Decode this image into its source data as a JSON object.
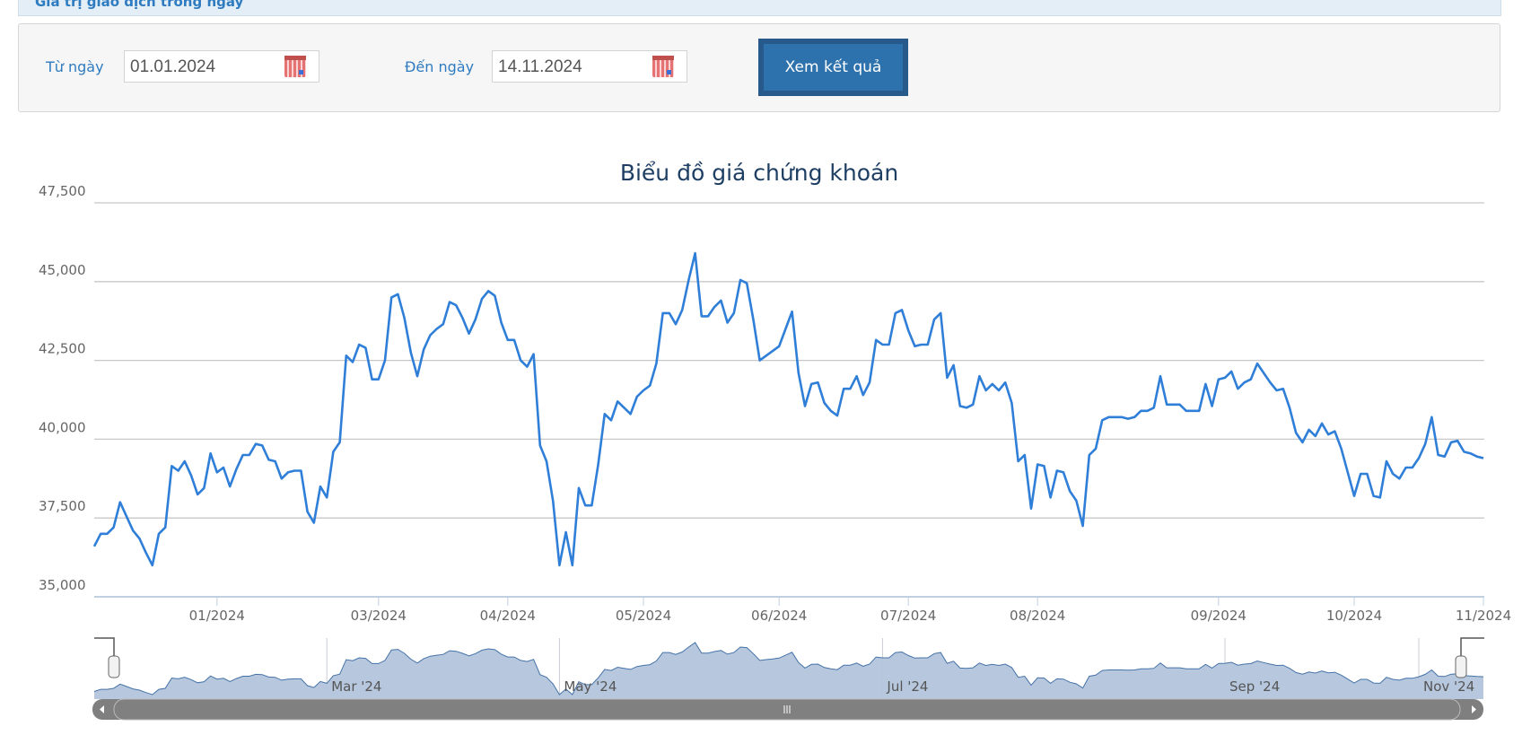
{
  "header": {
    "section_title": "Giá trị giao dịch trong ngày"
  },
  "filter": {
    "from_label": "Từ ngày",
    "from_value": "01.01.2024",
    "to_label": "Đến ngày",
    "to_value": "14.11.2024",
    "submit_label": "Xem kết quả",
    "calendar_icon": "calendar-icon"
  },
  "colors": {
    "line": "#2f7ed8",
    "navigator_fill": "#b3c5dc",
    "navigator_line": "#4572a7",
    "accent": "#2f7bc0"
  },
  "chart_data": {
    "type": "line",
    "title": "Biểu đồ giá chứng khoán",
    "xlabel": "",
    "ylabel": "",
    "ylim": [
      35000,
      47500
    ],
    "y_ticks": [
      "35,000",
      "37,500",
      "40,000",
      "42,500",
      "45,000",
      "47,500"
    ],
    "y_tick_values": [
      35000,
      37500,
      40000,
      42500,
      45000,
      47500
    ],
    "grid": true,
    "x_axis": "ordinal trading days",
    "x_ticks": [
      {
        "label": "01/2024",
        "index": 19
      },
      {
        "label": "03/2024",
        "index": 44
      },
      {
        "label": "04/2024",
        "index": 64
      },
      {
        "label": "05/2024",
        "index": 85
      },
      {
        "label": "06/2024",
        "index": 106
      },
      {
        "label": "07/2024",
        "index": 126
      },
      {
        "label": "08/2024",
        "index": 146
      },
      {
        "label": "09/2024",
        "index": 174
      },
      {
        "label": "10/2024",
        "index": 195
      },
      {
        "label": "11/2024",
        "index": 215
      }
    ],
    "values": [
      36600,
      37000,
      37000,
      37200,
      38000,
      37550,
      37100,
      36850,
      36400,
      36000,
      37000,
      37200,
      39150,
      39000,
      39300,
      38850,
      38250,
      38450,
      39550,
      38950,
      39100,
      38500,
      39050,
      39500,
      39500,
      39850,
      39800,
      39350,
      39300,
      38750,
      38950,
      39000,
      39000,
      37700,
      37350,
      38500,
      38150,
      39600,
      39900,
      42650,
      42450,
      43000,
      42900,
      41900,
      41900,
      42500,
      44500,
      44600,
      43850,
      42750,
      42000,
      42850,
      43300,
      43500,
      43650,
      44350,
      44250,
      43850,
      43350,
      43800,
      44450,
      44700,
      44550,
      43700,
      43150,
      43150,
      42500,
      42300,
      42700,
      39800,
      39300,
      38050,
      36000,
      37050,
      36000,
      38450,
      37900,
      37900,
      39200,
      40800,
      40600,
      41200,
      41000,
      40800,
      41350,
      41550,
      41700,
      42400,
      44000,
      44000,
      43650,
      44100,
      45050,
      45900,
      43900,
      43900,
      44200,
      44400,
      43700,
      44000,
      45050,
      44950,
      43800,
      42500,
      42650,
      42800,
      42950,
      43500,
      44050,
      42100,
      41050,
      41750,
      41800,
      41150,
      40900,
      40750,
      41600,
      41600,
      42000,
      41400,
      41800,
      43150,
      43000,
      43000,
      44000,
      44100,
      43450,
      42950,
      43000,
      43000,
      43800,
      44000,
      41950,
      42350,
      41050,
      41000,
      41100,
      42000,
      41550,
      41750,
      41550,
      41800,
      41150,
      39300,
      39500,
      37800,
      39200,
      39150,
      38150,
      39000,
      38950,
      38350,
      38050,
      37250,
      39500,
      39700,
      40600,
      40700,
      40700,
      40700,
      40650,
      40700,
      40900,
      40900,
      41000,
      42000,
      41100,
      41100,
      41100,
      40900,
      40900,
      40900,
      41750,
      41050,
      41900,
      41950,
      42150,
      41600,
      41800,
      41900,
      42400,
      42100,
      41800,
      41550,
      41600,
      41000,
      40200,
      39900,
      40300,
      40100,
      40500,
      40150,
      40250,
      39700,
      38950,
      38200,
      38900,
      38900,
      38200,
      38150,
      39300,
      38900,
      38750,
      39100,
      39100,
      39400,
      39850,
      40700,
      39500,
      39450,
      39900,
      39950,
      39600,
      39550,
      39450,
      39400
    ],
    "navigator": {
      "labels": [
        "Mar '24",
        "May '24",
        "Jul '24",
        "Sep '24",
        "Nov '24"
      ],
      "label_indices": [
        36,
        72,
        122,
        175,
        205
      ],
      "selected_range": "full"
    }
  }
}
